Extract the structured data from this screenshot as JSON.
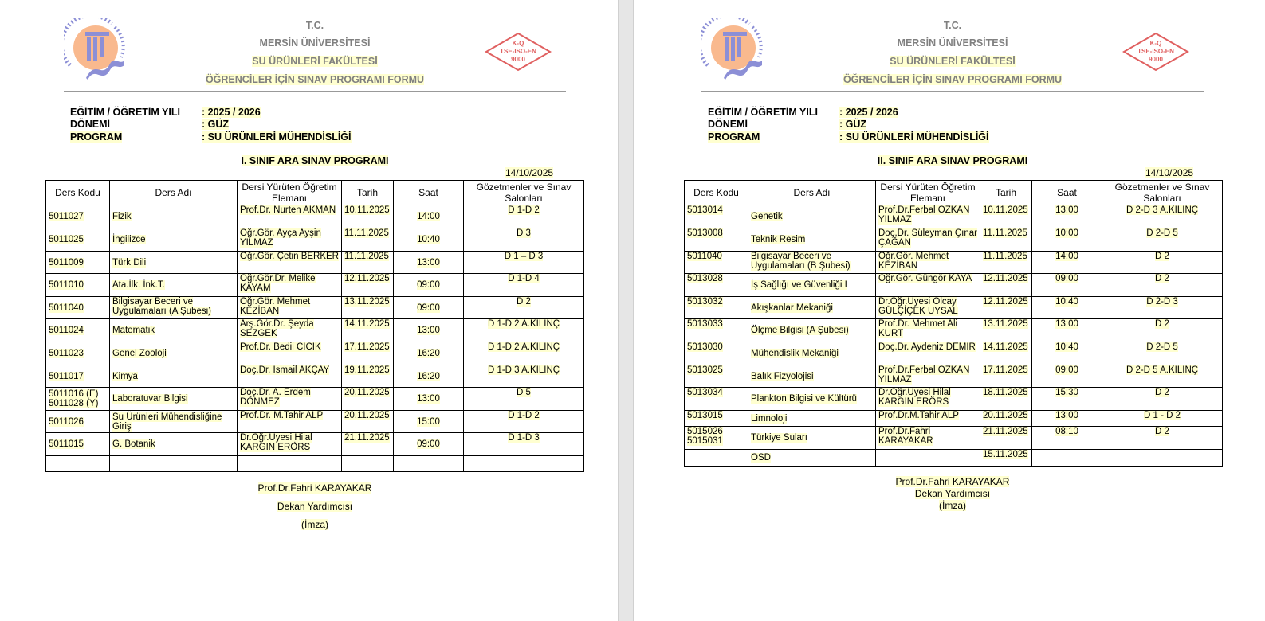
{
  "header": {
    "tc": "T.C.",
    "university": "MERSİN ÜNİVERSİTESİ",
    "faculty": "SU ÜRÜNLERİ FAKÜLTESİ",
    "form_title": "ÖĞRENCİLER İÇİN SINAV PROGRAMI FORMU",
    "logo_text": "MERSİN ÜNİVERSİTESİ 1992",
    "iso_badge": [
      "K-Q",
      "TSE-ISO-EN",
      "9000"
    ]
  },
  "colors": {
    "highlight": "#ffffd0",
    "logo_sun": "#f9b98e",
    "logo_blue": "#8c8fd6",
    "iso_red": "#e06060"
  },
  "info": {
    "year_label": "EĞİTİM / ÖĞRETİM YILI",
    "year_value": ": 2025 / 2026",
    "term_label": "DÖNEMİ",
    "term_value": ": GÜZ",
    "program_label": "PROGRAM",
    "program_value": ": SU ÜRÜNLERİ MÜHENDİSLİĞİ"
  },
  "columns": [
    "Ders Kodu",
    "Ders Adı",
    "Dersi Yürüten Öğretim Elemanı",
    "Tarih",
    "Saat",
    "Gözetmenler ve Sınav Salonları"
  ],
  "pages": [
    {
      "title": "I. SINIF ARA SINAV PROGRAMI",
      "date": "14/10/2025",
      "rows": [
        [
          "5011027",
          "Fizik",
          "Prof.Dr. Nurten AKMAN",
          "10.11.2025",
          "14:00",
          "D 1-D 2"
        ],
        [
          "5011025",
          "İngilizce",
          "Öğr.Gör. Ayça Ayşin YILMAZ",
          "11.11.2025",
          "10:40",
          "D 3"
        ],
        [
          "5011009",
          "Türk Dili",
          "Öğr.Gör. Çetin BERKER",
          "11.11.2025",
          "13:00",
          "D 1 – D 3"
        ],
        [
          "5011010",
          "Ata.İlk. İnk.T.",
          "Öğr.Gör.Dr. Melike KAYAM",
          "12.11.2025",
          "09:00",
          "D 1-D 4"
        ],
        [
          "5011040",
          "Bilgisayar Beceri ve Uygulamaları (A Şubesi)",
          "Öğr.Gör. Mehmet KEZİBAN",
          "13.11.2025",
          "09:00",
          "D 2"
        ],
        [
          "5011024",
          "Matematik",
          "Arş.Gör.Dr. Şeyda SEZGEK",
          "14.11.2025",
          "13:00",
          "D 1-D 2 A.KILINÇ"
        ],
        [
          "5011023",
          "Genel Zooloji",
          "Prof.Dr. Bedii CİCİK",
          "17.11.2025",
          "16:20",
          "D 1-D 2 A.KILINÇ"
        ],
        [
          "5011017",
          "Kimya",
          "Doç.Dr. İsmail AKÇAY",
          "19.11.2025",
          "16:20",
          "D 1-D 3 A.KILINÇ"
        ],
        [
          "5011016 (E) 5011028 (Y)",
          "Laboratuvar Bilgisi",
          "Doç.Dr. A. Erdem DÖNMEZ",
          "20.11.2025",
          "13:00",
          "D 5"
        ],
        [
          "5011026",
          "Su Ürünleri Mühendisliğine Giriş",
          "Prof.Dr. M.Tahir ALP",
          "20.11.2025",
          "15:00",
          "D 1-D 2"
        ],
        [
          "5011015",
          "G. Botanik",
          "Dr.Öğr.Üyesi Hilal KARGIN ERÖRS",
          "21.11.2025",
          "09:00",
          "D 1-D 3"
        ],
        [
          "",
          "",
          "",
          "",
          "",
          ""
        ]
      ],
      "signature": {
        "name": "Prof.Dr.Fahri KARAYAKAR",
        "role": "Dekan Yardımcısı",
        "sign": "(İmza)"
      }
    },
    {
      "title": "II. SINIF ARA SINAV PROGRAMI",
      "date": "14/10/2025",
      "rows": [
        [
          "5013014",
          "Genetik",
          "Prof.Dr.Ferbal ÖZKAN YILMAZ",
          "10.11.2025",
          "13:00",
          "D 2-D 3 A.KILINÇ"
        ],
        [
          "5013008",
          "Teknik Resim",
          "Doç.Dr. Süleyman Çınar ÇAĞAN",
          "11.11.2025",
          "10:00",
          "D 2-D 5"
        ],
        [
          "5011040",
          "Bilgisayar Beceri ve Uygulamaları (B Şubesi)",
          "Öğr.Gör. Mehmet KEZİBAN",
          "11.11.2025",
          "14:00",
          "D 2"
        ],
        [
          "5013028",
          "İş Sağlığı ve Güvenliği I",
          "Öğr.Gör. Güngör KAYA",
          "12.11.2025",
          "09:00",
          "D 2"
        ],
        [
          "5013032",
          "Akışkanlar Mekaniği",
          "Dr.Öğr.Üyesi Olcay GÜLÇİÇEK UYSAL",
          "12.11.2025",
          "10:40",
          "D 2-D 3"
        ],
        [
          "5013033",
          "Ölçme Bilgisi (A Şubesi)",
          "Prof.Dr. Mehmet Ali KURT",
          "13.11.2025",
          "13:00",
          "D 2"
        ],
        [
          "5013030",
          "Mühendislik Mekaniği",
          "Doç.Dr. Aydeniz DEMİR",
          "14.11.2025",
          "10:40",
          "D 2-D 5"
        ],
        [
          "5013025",
          "Balık Fizyolojisi",
          "Prof.Dr.Ferbal ÖZKAN YILMAZ",
          "17.11.2025",
          "09:00",
          "D 2-D 5 A.KILINÇ"
        ],
        [
          "5013034",
          "Plankton Bilgisi ve Kültürü",
          "Dr.Öğr.Üyesi Hilal KARGIN ERÖRS",
          "18.11.2025",
          "15:30",
          "D 2"
        ],
        [
          "5013015",
          "Limnoloji",
          "Prof.Dr.M.Tahir ALP",
          "20.11.2025",
          "13:00",
          "D 1 - D 2"
        ],
        [
          "5015026 5015031",
          "Türkiye Suları",
          "Prof.Dr.Fahri KARAYAKAR",
          "21.11.2025",
          "08:10",
          "D 2"
        ],
        [
          "",
          "OSD",
          "",
          "15.11.2025",
          "",
          ""
        ]
      ],
      "signature": {
        "name": "Prof.Dr.Fahri KARAYAKAR",
        "role": "Dekan Yardımcısı",
        "sign": "(İmza)"
      }
    }
  ]
}
